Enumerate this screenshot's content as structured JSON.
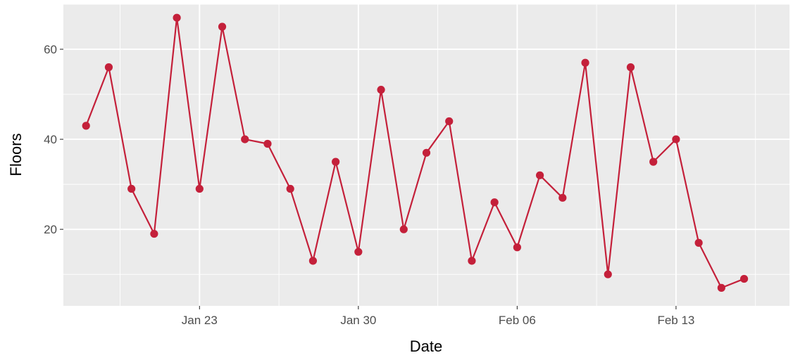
{
  "chart_data": {
    "type": "line",
    "xlabel": "Date",
    "ylabel": "Floors",
    "x_tick_labels": [
      {
        "date": "2022-01-23",
        "label": "Jan 23"
      },
      {
        "date": "2022-01-30",
        "label": "Jan 30"
      },
      {
        "date": "2022-02-06",
        "label": "Feb 06"
      },
      {
        "date": "2022-02-13",
        "label": "Feb 13"
      }
    ],
    "y_ticks": [
      20,
      40,
      60
    ],
    "xlim": [
      "2022-01-17",
      "2022-02-18"
    ],
    "ylim": [
      3,
      70
    ],
    "grid": true,
    "colors": {
      "panel": "#ebebeb",
      "grid": "#ffffff",
      "series": "#c4203a",
      "tick_text": "#4d4d4d",
      "tick_mark": "#333333"
    },
    "series": [
      {
        "points": [
          {
            "x": "2022-01-18",
            "y": 43
          },
          {
            "x": "2022-01-19",
            "y": 56
          },
          {
            "x": "2022-01-20",
            "y": 29
          },
          {
            "x": "2022-01-21",
            "y": 19
          },
          {
            "x": "2022-01-22",
            "y": 67
          },
          {
            "x": "2022-01-23",
            "y": 29
          },
          {
            "x": "2022-01-24",
            "y": 65
          },
          {
            "x": "2022-01-25",
            "y": 40
          },
          {
            "x": "2022-01-26",
            "y": 39
          },
          {
            "x": "2022-01-27",
            "y": 29
          },
          {
            "x": "2022-01-28",
            "y": 13
          },
          {
            "x": "2022-01-29",
            "y": 35
          },
          {
            "x": "2022-01-30",
            "y": 15
          },
          {
            "x": "2022-01-31",
            "y": 51
          },
          {
            "x": "2022-02-01",
            "y": 20
          },
          {
            "x": "2022-02-02",
            "y": 37
          },
          {
            "x": "2022-02-03",
            "y": 44
          },
          {
            "x": "2022-02-04",
            "y": 13
          },
          {
            "x": "2022-02-05",
            "y": 26
          },
          {
            "x": "2022-02-06",
            "y": 16
          },
          {
            "x": "2022-02-07",
            "y": 32
          },
          {
            "x": "2022-02-08",
            "y": 27
          },
          {
            "x": "2022-02-09",
            "y": 57
          },
          {
            "x": "2022-02-10",
            "y": 10
          },
          {
            "x": "2022-02-11",
            "y": 56
          },
          {
            "x": "2022-02-12",
            "y": 35
          },
          {
            "x": "2022-02-13",
            "y": 40
          },
          {
            "x": "2022-02-14",
            "y": 17
          },
          {
            "x": "2022-02-15",
            "y": 7
          },
          {
            "x": "2022-02-16",
            "y": 9
          }
        ]
      }
    ]
  }
}
